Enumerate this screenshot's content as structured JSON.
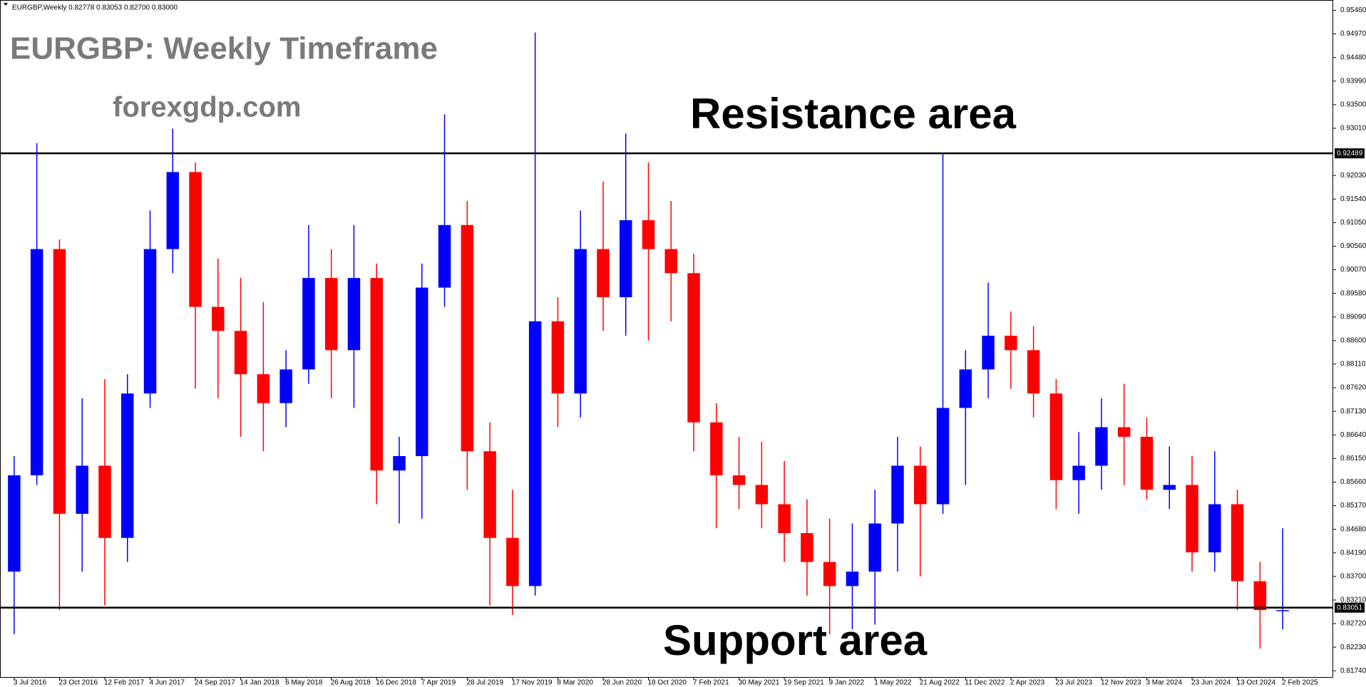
{
  "chart_data": {
    "type": "candlestick",
    "header": "EURGBP,Weekly  0.82778 0.83053 0.82700 0.83000",
    "title": "EURGBP: Weekly Timeframe",
    "subtitle": "forexgdp.com",
    "annotations": [
      "Resistance area",
      "Support area"
    ],
    "up_color": "#0000ff",
    "down_color": "#ff0000",
    "categories": [
      "3 Jul 2016",
      null,
      "23 Oct 2016",
      null,
      "12 Feb 2017",
      null,
      "4 Jun 2017",
      null,
      "24 Sep 2017",
      null,
      "14 Jan 2018",
      null,
      "6 May 2018",
      null,
      "26 Aug 2018",
      null,
      "16 Dec 2018",
      null,
      "7 Apr 2019",
      null,
      "28 Jul 2019",
      null,
      "17 Nov 2019",
      null,
      "8 Mar 2020",
      null,
      "28 Jun 2020",
      null,
      "18 Oct 2020",
      null,
      "7 Feb 2021",
      null,
      "30 May 2021",
      null,
      "19 Sep 2021",
      null,
      "9 Jan 2022",
      null,
      "1 May 2022",
      null,
      "21 Aug 2022",
      null,
      "11 Dec 2022",
      null,
      "2 Apr 2023",
      null,
      "23 Jul 2023",
      null,
      "12 Nov 2023",
      null,
      "3 Mar 2024",
      null,
      "23 Jun 2024",
      null,
      "13 Oct 2024",
      null,
      "2 Feb 2025"
    ],
    "open": [
      0.838,
      0.858,
      0.905,
      0.85,
      0.86,
      0.845,
      0.875,
      0.905,
      0.921,
      0.893,
      0.888,
      0.879,
      0.873,
      0.88,
      0.899,
      0.884,
      0.899,
      0.859,
      0.862,
      0.897,
      0.91,
      0.863,
      0.845,
      0.835,
      0.89,
      0.875,
      0.905,
      0.895,
      0.911,
      0.905,
      0.9,
      0.869,
      0.858,
      0.856,
      0.852,
      0.846,
      0.84,
      0.835,
      0.838,
      0.848,
      0.86,
      0.852,
      0.872,
      0.88,
      0.887,
      0.884,
      0.875,
      0.857,
      0.86,
      0.868,
      0.866,
      0.855,
      0.856,
      0.842,
      0.852,
      0.836,
      0.83
    ],
    "high": [
      0.862,
      0.927,
      0.907,
      0.874,
      0.878,
      0.879,
      0.913,
      0.93,
      0.923,
      0.903,
      0.899,
      0.894,
      0.884,
      0.91,
      0.905,
      0.91,
      0.902,
      0.866,
      0.902,
      0.933,
      0.915,
      0.869,
      0.855,
      0.95,
      0.895,
      0.913,
      0.919,
      0.929,
      0.923,
      0.915,
      0.904,
      0.873,
      0.866,
      0.865,
      0.861,
      0.853,
      0.849,
      0.848,
      0.855,
      0.866,
      0.864,
      0.925,
      0.884,
      0.898,
      0.892,
      0.889,
      0.878,
      0.867,
      0.874,
      0.877,
      0.87,
      0.864,
      0.862,
      0.863,
      0.855,
      0.84,
      0.847
    ],
    "low": [
      0.825,
      0.856,
      0.83,
      0.838,
      0.831,
      0.84,
      0.872,
      0.9,
      0.876,
      0.874,
      0.866,
      0.863,
      0.868,
      0.877,
      0.874,
      0.872,
      0.852,
      0.848,
      0.849,
      0.893,
      0.855,
      0.831,
      0.829,
      0.833,
      0.868,
      0.87,
      0.888,
      0.887,
      0.886,
      0.89,
      0.863,
      0.847,
      0.851,
      0.847,
      0.84,
      0.833,
      0.825,
      0.826,
      0.827,
      0.838,
      0.837,
      0.85,
      0.856,
      0.874,
      0.876,
      0.87,
      0.851,
      0.85,
      0.855,
      0.856,
      0.853,
      0.851,
      0.838,
      0.838,
      0.83,
      0.822,
      0.826
    ],
    "close": [
      0.858,
      0.905,
      0.85,
      0.86,
      0.845,
      0.875,
      0.905,
      0.921,
      0.893,
      0.888,
      0.879,
      0.873,
      0.88,
      0.899,
      0.884,
      0.899,
      0.859,
      0.862,
      0.897,
      0.91,
      0.863,
      0.845,
      0.835,
      0.89,
      0.875,
      0.905,
      0.895,
      0.911,
      0.905,
      0.9,
      0.869,
      0.858,
      0.856,
      0.852,
      0.846,
      0.84,
      0.835,
      0.838,
      0.848,
      0.86,
      0.852,
      0.872,
      0.88,
      0.887,
      0.884,
      0.875,
      0.857,
      0.86,
      0.868,
      0.866,
      0.855,
      0.856,
      0.842,
      0.852,
      0.836,
      0.83,
      0.83
    ],
    "levels": [
      0.92489,
      0.83051
    ],
    "ylim": [
      0.8161,
      0.9566
    ],
    "yticks": [
      {
        "value": 0.9546,
        "label": "0.95460"
      },
      {
        "value": 0.9497,
        "label": "0.94970"
      },
      {
        "value": 0.9448,
        "label": "0.94480"
      },
      {
        "value": 0.9399,
        "label": "0.93990"
      },
      {
        "value": 0.935,
        "label": "0.93500"
      },
      {
        "value": 0.9301,
        "label": "0.93010"
      },
      {
        "value": 0.9203,
        "label": "0.92030"
      },
      {
        "value": 0.9154,
        "label": "0.91540"
      },
      {
        "value": 0.9105,
        "label": "0.91050"
      },
      {
        "value": 0.9056,
        "label": "0.90560"
      },
      {
        "value": 0.9007,
        "label": "0.90070"
      },
      {
        "value": 0.8958,
        "label": "0.89580"
      },
      {
        "value": 0.8909,
        "label": "0.89090"
      },
      {
        "value": 0.886,
        "label": "0.88600"
      },
      {
        "value": 0.8811,
        "label": "0.88110"
      },
      {
        "value": 0.8762,
        "label": "0.87620"
      },
      {
        "value": 0.8713,
        "label": "0.87130"
      },
      {
        "value": 0.8664,
        "label": "0.86640"
      },
      {
        "value": 0.8615,
        "label": "0.86150"
      },
      {
        "value": 0.8566,
        "label": "0.85660"
      },
      {
        "value": 0.8517,
        "label": "0.85170"
      },
      {
        "value": 0.8468,
        "label": "0.84680"
      },
      {
        "value": 0.8419,
        "label": "0.84190"
      },
      {
        "value": 0.837,
        "label": "0.83700"
      },
      {
        "value": 0.8321,
        "label": "0.83210"
      },
      {
        "value": 0.8272,
        "label": "0.82720"
      },
      {
        "value": 0.8223,
        "label": "0.82230"
      },
      {
        "value": 0.8174,
        "label": "0.81740"
      }
    ],
    "grid": false
  }
}
